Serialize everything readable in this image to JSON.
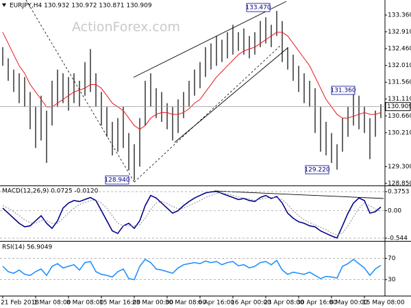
{
  "chart_data": [
    {
      "type": "ohlc",
      "title": "EURJPY,H4  130.932 130.972 130.871 130.909",
      "watermark": "ActionForex.com",
      "categories": [
        "21 Feb 2018",
        null,
        null,
        null,
        null,
        null,
        "1 Mar 08:00",
        null,
        null,
        null,
        null,
        null,
        "8 Mar 08:00",
        null,
        null,
        null,
        null,
        null,
        "15 Mar 16:00",
        null,
        null,
        null,
        null,
        null,
        "23 Mar 00:00",
        null,
        null,
        null,
        null,
        null,
        "30 Mar 08:00",
        null,
        null,
        null,
        null,
        null,
        "6 Apr 16:00",
        null,
        null,
        null,
        null,
        null,
        "16 Apr 00:00",
        null,
        null,
        null,
        null,
        null,
        "23 Apr 08:00",
        null,
        null,
        null,
        null,
        null,
        "30 Apr 16:00",
        null,
        null,
        null,
        null,
        null,
        "8 May 00:00",
        null,
        null,
        null,
        null,
        null,
        "15 May 08:00",
        null,
        null,
        null
      ],
      "high": [
        132.5,
        132.2,
        131.9,
        131.8,
        131.7,
        131.3,
        130.9,
        131.2,
        130.8,
        131.6,
        131.9,
        131.8,
        131.7,
        131.8,
        131.6,
        132.1,
        132.45,
        131.8,
        131.3,
        130.9,
        130.5,
        130.6,
        130.9,
        130.2,
        129.9,
        130.6,
        131.6,
        131.8,
        131.4,
        131.3,
        131.0,
        130.9,
        131.1,
        131.3,
        131.6,
        131.9,
        132.1,
        132.5,
        132.6,
        132.8,
        132.7,
        132.9,
        133.1,
        132.9,
        133.0,
        132.8,
        132.9,
        133.2,
        133.3,
        133.1,
        133.47,
        133.2,
        132.5,
        132.3,
        132.0,
        131.8,
        131.6,
        131.4,
        130.9,
        130.5,
        130.2,
        129.9,
        130.6,
        130.9,
        131.36,
        131.2,
        130.9,
        130.6,
        130.8,
        130.972
      ],
      "low": [
        132.0,
        131.6,
        131.3,
        131.0,
        130.9,
        130.3,
        129.8,
        130.0,
        129.4,
        130.4,
        130.9,
        131.0,
        130.8,
        131.0,
        130.9,
        131.2,
        131.3,
        130.9,
        130.4,
        130.1,
        129.6,
        129.7,
        129.8,
        129.2,
        128.94,
        129.3,
        130.4,
        130.9,
        130.6,
        130.5,
        130.3,
        130.0,
        130.2,
        130.6,
        130.9,
        131.2,
        131.4,
        131.7,
        131.9,
        132.0,
        132.1,
        132.2,
        132.3,
        132.4,
        132.3,
        132.2,
        132.3,
        132.5,
        132.6,
        132.5,
        132.8,
        132.1,
        131.9,
        131.6,
        131.3,
        131.0,
        130.9,
        130.2,
        129.7,
        129.6,
        129.4,
        129.22,
        129.7,
        130.1,
        130.4,
        130.3,
        130.2,
        129.5,
        130.1,
        130.6
      ],
      "color": "#000000",
      "ma_color": "#e8141e",
      "ma_values": [
        132.9,
        132.6,
        132.3,
        132.0,
        131.8,
        131.5,
        131.3,
        131.1,
        130.9,
        130.9,
        131.0,
        131.1,
        131.2,
        131.3,
        131.35,
        131.4,
        131.5,
        131.5,
        131.4,
        131.2,
        131.0,
        130.9,
        130.8,
        130.6,
        130.4,
        130.3,
        130.4,
        130.6,
        130.7,
        130.75,
        130.75,
        130.7,
        130.7,
        130.75,
        130.85,
        131.0,
        131.1,
        131.3,
        131.5,
        131.7,
        131.85,
        132.0,
        132.15,
        132.3,
        132.4,
        132.45,
        132.5,
        132.6,
        132.7,
        132.8,
        132.9,
        132.9,
        132.8,
        132.6,
        132.4,
        132.2,
        132.0,
        131.7,
        131.4,
        131.1,
        130.9,
        130.7,
        130.6,
        130.6,
        130.65,
        130.7,
        130.75,
        130.7,
        130.7,
        130.75
      ],
      "last_price": 130.909,
      "annotations": [
        "133.470",
        "131.360",
        "129.220",
        "128.940"
      ],
      "ylim": [
        128.795,
        133.708
      ],
      "yticks": [
        {
          "value": 133.36,
          "label": "133.360"
        },
        {
          "value": 132.91,
          "label": "132.910"
        },
        {
          "value": 132.46,
          "label": "132.460"
        },
        {
          "value": 132.01,
          "label": "132.010"
        },
        {
          "value": 131.56,
          "label": "131.560"
        },
        {
          "value": 131.11,
          "label": "131.110"
        },
        {
          "value": 130.66,
          "label": "130.660"
        },
        {
          "value": 130.21,
          "label": "130.210"
        },
        {
          "value": 129.3,
          "label": "129.300"
        },
        {
          "value": 128.85,
          "label": "128.850"
        }
      ]
    },
    {
      "type": "line",
      "title": "MACD(12,26,9) 0.0725 -0.0120",
      "series": [
        {
          "color": "#00008b",
          "values": [
            0.05,
            -0.05,
            -0.15,
            -0.25,
            -0.32,
            -0.3,
            -0.2,
            -0.1,
            -0.25,
            -0.35,
            -0.2,
            0.05,
            0.15,
            0.2,
            0.18,
            0.22,
            0.26,
            0.2,
            0.0,
            -0.2,
            -0.4,
            -0.45,
            -0.3,
            -0.25,
            -0.35,
            -0.2,
            0.1,
            0.3,
            0.25,
            0.15,
            0.05,
            -0.05,
            0.0,
            0.1,
            0.18,
            0.25,
            0.3,
            0.35,
            0.37,
            0.38,
            0.34,
            0.3,
            0.26,
            0.22,
            0.24,
            0.2,
            0.18,
            0.26,
            0.3,
            0.24,
            0.28,
            0.15,
            -0.05,
            -0.15,
            -0.22,
            -0.25,
            -0.3,
            -0.32,
            -0.4,
            -0.45,
            -0.5,
            -0.54,
            -0.3,
            -0.05,
            0.15,
            0.25,
            0.2,
            -0.05,
            -0.02,
            0.0725
          ]
        },
        {
          "color": "#8a8a8a",
          "dash": true,
          "values": [
            0.1,
            0.05,
            -0.02,
            -0.1,
            -0.18,
            -0.24,
            -0.25,
            -0.2,
            -0.2,
            -0.25,
            -0.25,
            -0.15,
            -0.05,
            0.05,
            0.12,
            0.16,
            0.2,
            0.21,
            0.15,
            0.05,
            -0.1,
            -0.25,
            -0.3,
            -0.3,
            -0.3,
            -0.28,
            -0.15,
            0.02,
            0.15,
            0.18,
            0.14,
            0.08,
            0.04,
            0.05,
            0.1,
            0.15,
            0.2,
            0.26,
            0.3,
            0.34,
            0.35,
            0.33,
            0.3,
            0.27,
            0.25,
            0.23,
            0.2,
            0.22,
            0.25,
            0.26,
            0.26,
            0.22,
            0.12,
            0.0,
            -0.1,
            -0.18,
            -0.24,
            -0.28,
            -0.33,
            -0.38,
            -0.44,
            -0.48,
            -0.44,
            -0.3,
            -0.12,
            0.05,
            0.15,
            0.1,
            0.03,
            -0.012
          ]
        }
      ],
      "ylim": [
        -0.598,
        0.4835
      ],
      "yticks": [
        0.3753,
        {
          "value": 0,
          "label": "0.00"
        },
        -0.544
      ]
    },
    {
      "type": "line",
      "title": "RSI(14) 56.9049",
      "series": [
        {
          "color": "#1e90ff",
          "values": [
            55,
            45,
            42,
            48,
            40,
            38,
            45,
            50,
            38,
            55,
            60,
            52,
            55,
            58,
            48,
            62,
            64,
            45,
            40,
            38,
            35,
            45,
            50,
            32,
            30,
            55,
            68,
            62,
            50,
            48,
            45,
            42,
            52,
            58,
            60,
            62,
            60,
            65,
            62,
            64,
            58,
            62,
            64,
            56,
            58,
            52,
            55,
            62,
            64,
            58,
            66,
            48,
            40,
            44,
            42,
            40,
            44,
            38,
            32,
            36,
            35,
            33,
            55,
            60,
            68,
            60,
            52,
            38,
            50,
            56.9049
          ]
        }
      ],
      "ylim": [
        0,
        100
      ],
      "yticks": [
        70,
        30
      ]
    }
  ]
}
